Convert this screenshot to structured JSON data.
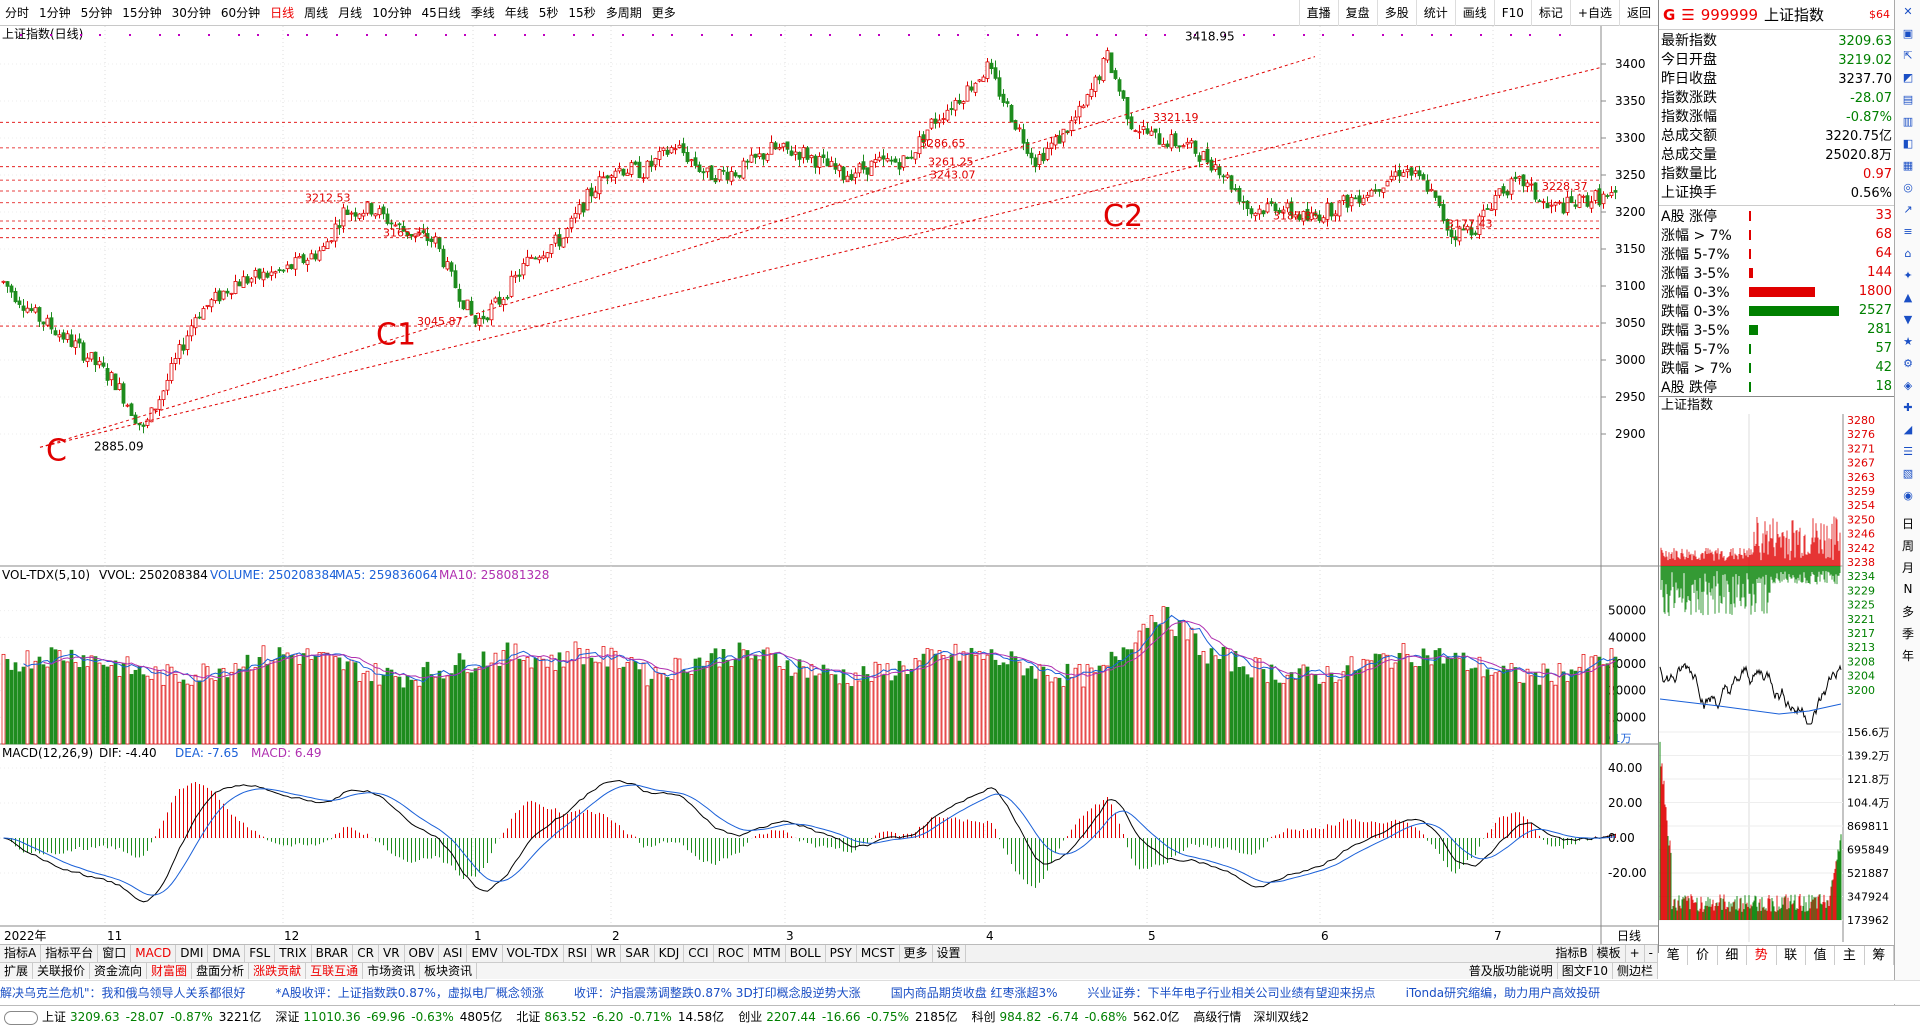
{
  "toolbar": {
    "timeframes": [
      "分时",
      "1分钟",
      "5分钟",
      "15分钟",
      "30分钟",
      "60分钟",
      "日线",
      "周线",
      "月线",
      "10分钟",
      "45日线",
      "季线",
      "年线",
      "5秒",
      "15秒",
      "多周期",
      "更多"
    ],
    "active_timeframe": "日线",
    "tools": [
      "直播",
      "复盘",
      "多股",
      "统计",
      "画线",
      "F10",
      "标记",
      "+自选",
      "返回"
    ]
  },
  "main_chart": {
    "title": "上证指数(日线)",
    "price_axis_labels": [
      "3400",
      "3350",
      "3300",
      "3250",
      "3200",
      "3150",
      "3100",
      "3050",
      "3000",
      "2950",
      "2900"
    ],
    "annotations": {
      "low_label": "2885.09",
      "high_label": "3418.95",
      "point_labels": [
        "3212.53",
        "3165.31",
        "3045.87",
        "3286.65",
        "3261.25",
        "3243.07",
        "3321.19",
        "3187.86",
        "3177.43",
        "3228.37"
      ],
      "wave_labels": [
        "C",
        "C1",
        "C2"
      ]
    },
    "month_labels": [
      "2022年",
      "11",
      "12",
      "1",
      "2",
      "3",
      "4",
      "5",
      "6",
      "7"
    ],
    "date_axis_end_label": "日线",
    "colors": {
      "up": "#e00000",
      "down": "#1e8c1e",
      "ma5": "#1a60d8",
      "ma10": "#b030b0",
      "dashed": "#e00000"
    }
  },
  "volume_panel": {
    "header": "VOL-TDX(5,10)",
    "vvol_label": "VVOL: 250208384",
    "volume_label": "VOLUME: 250208384",
    "ma5_label": "MA5: 259836064",
    "ma10_label": "MA10: 258081328",
    "axis_labels": [
      "50000",
      "40000",
      "30000",
      "20000",
      "10000"
    ],
    "unit_label": "X1万"
  },
  "macd_panel": {
    "header": "MACD(12,26,9)",
    "dif_label": "DIF: -4.40",
    "dea_label": "DEA: -7.65",
    "macd_label": "MACD: 6.49",
    "axis_labels": [
      "40.00",
      "20.00",
      "0.00",
      "-20.00"
    ]
  },
  "indicator_tabs": [
    "指标A",
    "指标平台",
    "窗口",
    "MACD",
    "DMI",
    "DMA",
    "FSL",
    "TRIX",
    "BRAR",
    "CR",
    "VR",
    "OBV",
    "ASI",
    "EMV",
    "VOL-TDX",
    "RSI",
    "WR",
    "SAR",
    "KDJ",
    "CCI",
    "ROC",
    "MTM",
    "BOLL",
    "PSY",
    "MCST",
    "更多",
    "设置"
  ],
  "active_indicator_tab": "MACD",
  "function_tabs": [
    "扩展",
    "关联报价",
    "资金流向",
    "财富圈",
    "盘面分析",
    "涨跌贡献",
    "互联互通",
    "市场资讯",
    "板块资讯"
  ],
  "function_right": [
    "普及版功能说明",
    "图文F10",
    "侧边栏"
  ],
  "indicator_right": [
    "指标B",
    "模板",
    "+",
    "-"
  ],
  "quote_panel": {
    "code": "999999",
    "name": "上证指数",
    "badge": "$64",
    "rows": [
      {
        "label": "最新指数",
        "value": "3209.63",
        "color": "#008000"
      },
      {
        "label": "今日开盘",
        "value": "3219.02",
        "color": "#008000"
      },
      {
        "label": "昨日收盘",
        "value": "3237.70",
        "color": "#000000"
      },
      {
        "label": "指数涨跌",
        "value": "-28.07",
        "color": "#008000"
      },
      {
        "label": "指数涨幅",
        "value": "-0.87%",
        "color": "#008000"
      },
      {
        "label": "总成交额",
        "value": "3220.75亿",
        "color": "#000000"
      },
      {
        "label": "总成交量",
        "value": "25020.8万",
        "color": "#000000"
      },
      {
        "label": "指数量比",
        "value": "0.97",
        "color": "#e00000"
      },
      {
        "label": "上证换手",
        "value": "0.56%",
        "color": "#000000"
      }
    ],
    "breadth": [
      {
        "label": "A股 涨停",
        "value": "33",
        "bar": 0.01,
        "color": "#e00000"
      },
      {
        "label": "涨幅 > 7%",
        "value": "68",
        "bar": 0.02,
        "color": "#e00000"
      },
      {
        "label": "涨幅 5-7%",
        "value": "64",
        "bar": 0.02,
        "color": "#e00000"
      },
      {
        "label": "涨幅 3-5%",
        "value": "144",
        "bar": 0.04,
        "color": "#e00000"
      },
      {
        "label": "涨幅 0-3%",
        "value": "1800",
        "bar": 0.72,
        "color": "#e00000"
      },
      {
        "label": "跌幅 0-3%",
        "value": "2527",
        "bar": 0.98,
        "color": "#008000"
      },
      {
        "label": "跌幅 3-5%",
        "value": "281",
        "bar": 0.1,
        "color": "#008000"
      },
      {
        "label": "跌幅 5-7%",
        "value": "57",
        "bar": 0.02,
        "color": "#008000"
      },
      {
        "label": "跌幅 > 7%",
        "value": "42",
        "bar": 0.02,
        "color": "#008000"
      },
      {
        "label": "A股 跌停",
        "value": "18",
        "bar": 0.01,
        "color": "#008000"
      }
    ],
    "mini_title": "上证指数",
    "mini_price_labels": [
      "3280",
      "3276",
      "3271",
      "3267",
      "3263",
      "3259",
      "3254",
      "3250",
      "3246",
      "3242",
      "3238",
      "3234",
      "3229",
      "3225",
      "3221",
      "3217",
      "3213",
      "3208",
      "3204",
      "3200"
    ],
    "mini_vol_labels": [
      "156.6万",
      "139.2万",
      "121.8万",
      "104.4万",
      "869811",
      "695849",
      "521887",
      "347924",
      "173962"
    ],
    "bottom_tabs": [
      "笔",
      "价",
      "细",
      "势",
      "联",
      "值",
      "主",
      "筹"
    ],
    "active_bottom_tab": "势"
  },
  "side_buttons": [
    "日",
    "周",
    "月",
    "N",
    "多",
    "季",
    "年"
  ],
  "news": [
    "解决乌克兰危机\"：我和俄乌领导人关系都很好",
    "*A股收评：上证指数跌0.87%，虚拟电厂概念领涨",
    "收评：沪指震荡调整跌0.87% 3D打印概念股逆势大涨",
    "国内商品期货收盘 红枣涨超3%",
    "兴业证券：下半年电子行业相关公司业绩有望迎来拐点",
    "iTonda研究缩编，助力用户高效投研"
  ],
  "status": {
    "items": [
      {
        "name": "上证",
        "price": "3209.63",
        "chg": "-28.07",
        "pct": "-0.87%",
        "amt": "3221亿"
      },
      {
        "name": "深证",
        "price": "11010.36",
        "chg": "-69.96",
        "pct": "-0.63%",
        "amt": "4805亿"
      },
      {
        "name": "北证",
        "price": "863.52",
        "chg": "-6.20",
        "pct": "-0.71%",
        "amt": "14.58亿"
      },
      {
        "name": "创业",
        "price": "2207.44",
        "chg": "-16.66",
        "pct": "-0.75%",
        "amt": "2185亿"
      },
      {
        "name": "科创",
        "price": "984.82",
        "chg": "-6.74",
        "pct": "-0.68%",
        "amt": "562.0亿"
      }
    ],
    "tail": [
      "高级行情",
      "深圳双线2"
    ]
  }
}
